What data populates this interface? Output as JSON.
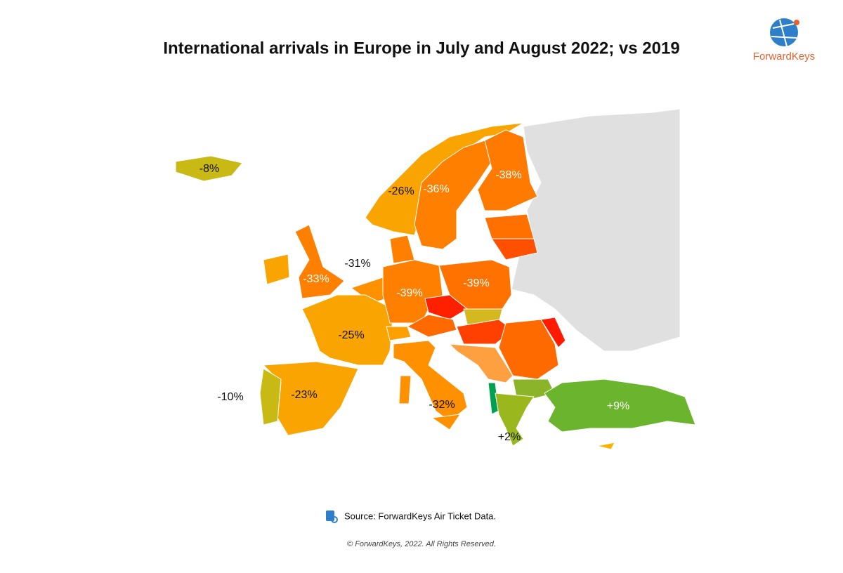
{
  "header": {
    "title": "International arrivals in Europe in July and August 2022; vs 2019",
    "logo": "ForwardKeys"
  },
  "map": {
    "labels": [
      "-8%",
      "-26%",
      "-36%",
      "-38%",
      "-31%",
      "-33%",
      "-39%",
      "-39%",
      "-25%",
      "-10%",
      "-23%",
      "-32%",
      "+9%",
      "+2%"
    ]
  },
  "footer": {
    "source": "Source: ForwardKeys Air Ticket Data.",
    "copyright": "© ForwardKeys, 2022. All Rights Reserved."
  }
}
